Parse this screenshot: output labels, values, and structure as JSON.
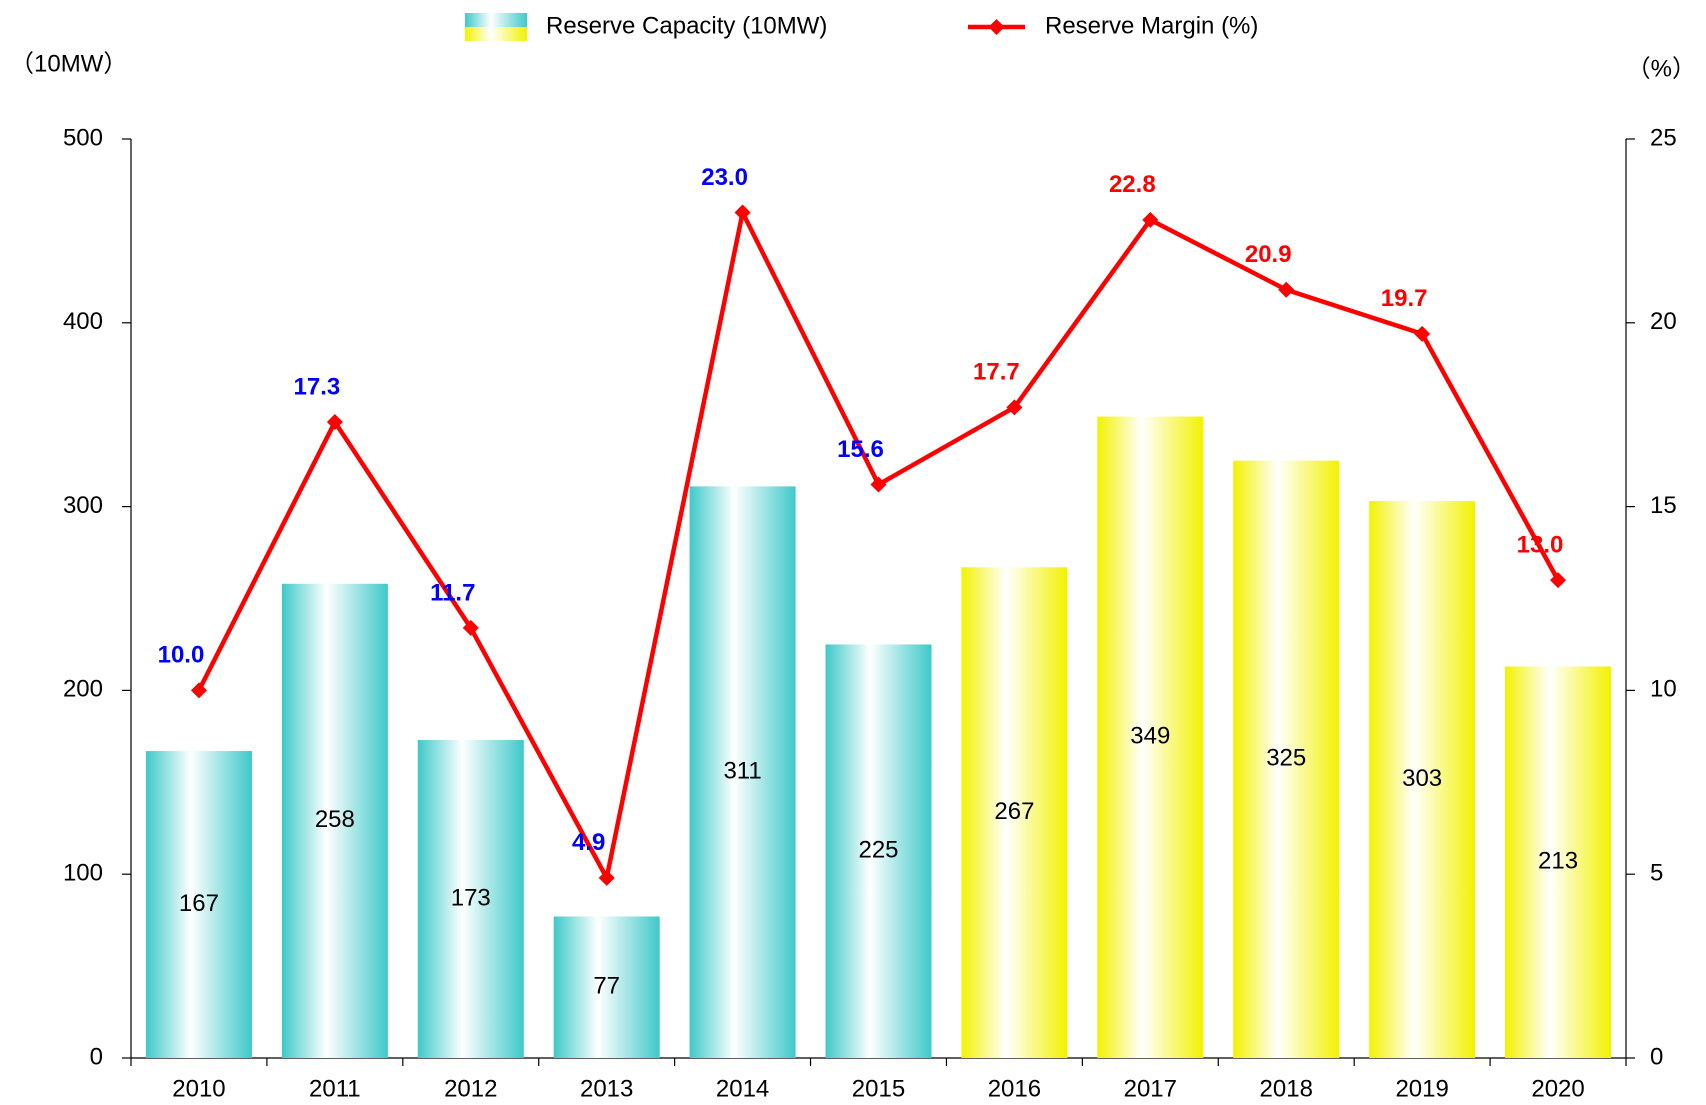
{
  "chart_data": {
    "type": "bar_line",
    "categories": [
      "2010",
      "2011",
      "2012",
      "2013",
      "2014",
      "2015",
      "2016",
      "2017",
      "2018",
      "2019",
      "2020"
    ],
    "y_label": "（10MW）",
    "y2_label": "（%）",
    "ylim": [
      0,
      500
    ],
    "yticks": [
      0,
      100,
      200,
      300,
      400,
      500
    ],
    "y2lim": [
      0,
      25
    ],
    "y2ticks": [
      0,
      5,
      10,
      15,
      20,
      25
    ],
    "legend": "top",
    "series": [
      {
        "name": "Reserve Capacity (10MW)",
        "type": "bar",
        "colors": [
          "#3ec9c9",
          "#3ec9c9",
          "#3ec9c9",
          "#3ec9c9",
          "#3ec9c9",
          "#3ec9c9",
          "#f2f200",
          "#f2f200",
          "#f2f200",
          "#f2f200",
          "#f2f200"
        ],
        "values": [
          167,
          258,
          173,
          77,
          311,
          225,
          267,
          349,
          325,
          303,
          213
        ]
      },
      {
        "name": "Reserve Margin (%)",
        "type": "line",
        "axis": "y2",
        "color": "#ff0000",
        "label_colors": [
          "#0000ff",
          "#0000ff",
          "#0000ff",
          "#0000ff",
          "#0000ff",
          "#0000ff",
          "#ff0000",
          "#ff0000",
          "#ff0000",
          "#ff0000",
          "#ff0000"
        ],
        "values": [
          10.0,
          17.3,
          11.7,
          4.9,
          23.0,
          15.6,
          17.7,
          22.8,
          20.9,
          19.7,
          13.0
        ],
        "value_labels": [
          "10.0",
          "17.3",
          "11.7",
          "4.9",
          "23.0",
          "15.6",
          "17.7",
          "22.8",
          "20.9",
          "19.7",
          "13.0"
        ]
      }
    ]
  }
}
